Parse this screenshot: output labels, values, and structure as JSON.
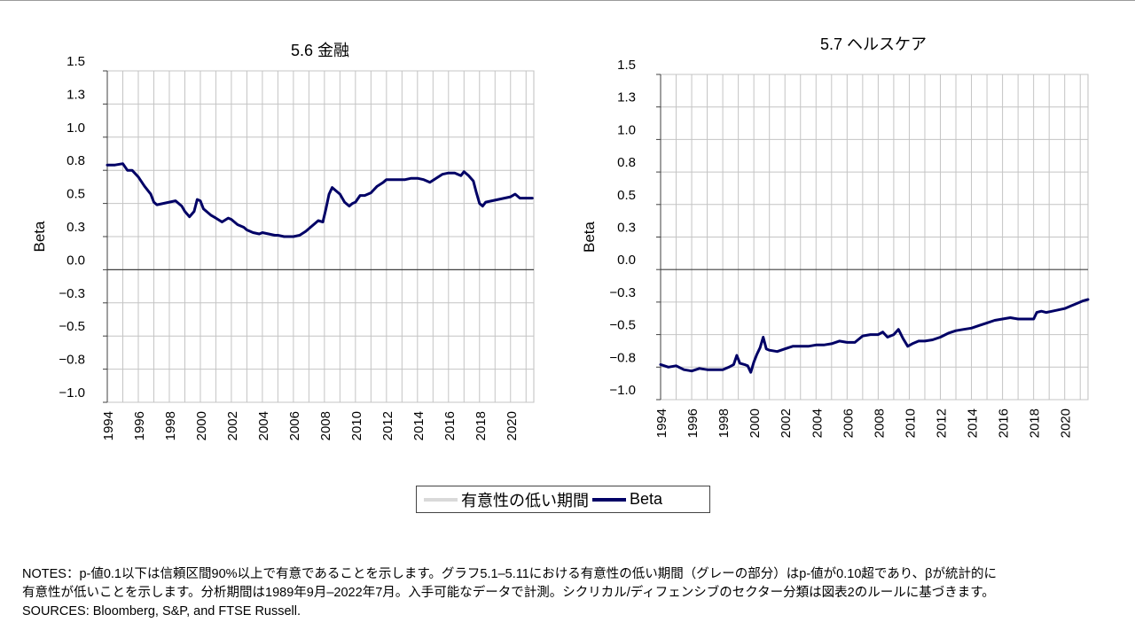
{
  "chart_data": [
    {
      "type": "line",
      "title": "5.6 金融",
      "ylabel": "Beta",
      "ylim": [
        -1.0,
        1.5
      ],
      "xlim": [
        1994,
        2021.5
      ],
      "yticks": [
        {
          "v": 1.5,
          "label": "1.5"
        },
        {
          "v": 1.25,
          "label": "1.3"
        },
        {
          "v": 1.0,
          "label": "1.0"
        },
        {
          "v": 0.75,
          "label": "0.8"
        },
        {
          "v": 0.5,
          "label": "0.5"
        },
        {
          "v": 0.25,
          "label": "0.3"
        },
        {
          "v": 0.0,
          "label": "0.0"
        },
        {
          "v": -0.25,
          "label": "−0.3"
        },
        {
          "v": -0.5,
          "label": "−0.5"
        },
        {
          "v": -0.75,
          "label": "−0.8"
        },
        {
          "v": -1.0,
          "label": "−1.0"
        }
      ],
      "xticks": [
        "1994",
        "1996",
        "1998",
        "2000",
        "2002",
        "2004",
        "2006",
        "2008",
        "2010",
        "2012",
        "2014",
        "2016",
        "2018",
        "2020"
      ],
      "grid": true,
      "series": [
        {
          "name": "Beta",
          "color": "#000066",
          "x": [
            1994.0,
            1994.5,
            1995.0,
            1995.3,
            1995.6,
            1996.0,
            1996.4,
            1996.8,
            1997.0,
            1997.2,
            1997.6,
            1998.0,
            1998.4,
            1998.8,
            1999.0,
            1999.3,
            1999.6,
            1999.8,
            2000.0,
            2000.2,
            2000.4,
            2000.7,
            2001.0,
            2001.4,
            2001.8,
            2002.0,
            2002.4,
            2002.8,
            2003.0,
            2003.4,
            2003.8,
            2004.0,
            2004.4,
            2004.8,
            2005.0,
            2005.4,
            2005.8,
            2006.0,
            2006.4,
            2006.8,
            2007.2,
            2007.6,
            2007.9,
            2008.1,
            2008.3,
            2008.5,
            2008.7,
            2009.0,
            2009.3,
            2009.6,
            2009.8,
            2010.0,
            2010.3,
            2010.6,
            2011.0,
            2011.4,
            2011.8,
            2012.0,
            2012.4,
            2012.8,
            2013.2,
            2013.6,
            2014.0,
            2014.4,
            2014.8,
            2015.2,
            2015.6,
            2016.0,
            2016.4,
            2016.8,
            2017.0,
            2017.3,
            2017.6,
            2017.8,
            2018.0,
            2018.2,
            2018.4,
            2018.8,
            2019.2,
            2019.6,
            2020.0,
            2020.3,
            2020.6,
            2020.9,
            2021.2,
            2021.4
          ],
          "y": [
            0.79,
            0.79,
            0.8,
            0.75,
            0.75,
            0.7,
            0.63,
            0.57,
            0.51,
            0.49,
            0.5,
            0.51,
            0.52,
            0.48,
            0.44,
            0.4,
            0.44,
            0.53,
            0.52,
            0.46,
            0.44,
            0.41,
            0.39,
            0.36,
            0.39,
            0.38,
            0.34,
            0.32,
            0.3,
            0.28,
            0.27,
            0.28,
            0.27,
            0.26,
            0.26,
            0.25,
            0.25,
            0.25,
            0.26,
            0.29,
            0.33,
            0.37,
            0.36,
            0.46,
            0.57,
            0.62,
            0.6,
            0.57,
            0.51,
            0.48,
            0.5,
            0.51,
            0.56,
            0.56,
            0.58,
            0.63,
            0.66,
            0.68,
            0.68,
            0.68,
            0.68,
            0.69,
            0.69,
            0.68,
            0.66,
            0.69,
            0.72,
            0.73,
            0.73,
            0.71,
            0.74,
            0.71,
            0.67,
            0.58,
            0.5,
            0.48,
            0.51,
            0.52,
            0.53,
            0.54,
            0.55,
            0.57,
            0.54,
            0.54,
            0.54,
            0.54
          ]
        }
      ]
    },
    {
      "type": "line",
      "title": "5.7 ヘルスケア",
      "ylabel": "Beta",
      "ylim": [
        -1.0,
        1.5
      ],
      "xlim": [
        1994,
        2021.5
      ],
      "yticks": [
        {
          "v": 1.5,
          "label": "1.5"
        },
        {
          "v": 1.25,
          "label": "1.3"
        },
        {
          "v": 1.0,
          "label": "1.0"
        },
        {
          "v": 0.75,
          "label": "0.8"
        },
        {
          "v": 0.5,
          "label": "0.5"
        },
        {
          "v": 0.25,
          "label": "0.3"
        },
        {
          "v": 0.0,
          "label": "0.0"
        },
        {
          "v": -0.25,
          "label": "−0.3"
        },
        {
          "v": -0.5,
          "label": "−0.5"
        },
        {
          "v": -0.75,
          "label": "−0.8"
        },
        {
          "v": -1.0,
          "label": "−1.0"
        }
      ],
      "xticks": [
        "1994",
        "1996",
        "1998",
        "2000",
        "2002",
        "2004",
        "2006",
        "2008",
        "2010",
        "2012",
        "2014",
        "2016",
        "2018",
        "2020"
      ],
      "grid": true,
      "series": [
        {
          "name": "Beta",
          "color": "#000066",
          "x": [
            1994.0,
            1994.5,
            1995.0,
            1995.5,
            1996.0,
            1996.5,
            1997.0,
            1997.5,
            1998.0,
            1998.4,
            1998.7,
            1998.9,
            1999.1,
            1999.4,
            1999.6,
            1999.8,
            2000.0,
            2000.2,
            2000.4,
            2000.6,
            2000.8,
            2001.0,
            2001.5,
            2002.0,
            2002.5,
            2003.0,
            2003.5,
            2004.0,
            2004.5,
            2005.0,
            2005.5,
            2006.0,
            2006.5,
            2007.0,
            2007.5,
            2008.0,
            2008.3,
            2008.6,
            2009.0,
            2009.3,
            2009.6,
            2009.9,
            2010.2,
            2010.6,
            2011.0,
            2011.5,
            2012.0,
            2012.5,
            2013.0,
            2013.5,
            2014.0,
            2014.5,
            2015.0,
            2015.5,
            2016.0,
            2016.5,
            2017.0,
            2017.5,
            2018.0,
            2018.2,
            2018.5,
            2018.8,
            2019.2,
            2019.6,
            2020.0,
            2020.4,
            2020.8,
            2021.2,
            2021.5
          ],
          "y": [
            -0.73,
            -0.75,
            -0.74,
            -0.77,
            -0.78,
            -0.76,
            -0.77,
            -0.77,
            -0.77,
            -0.75,
            -0.73,
            -0.66,
            -0.72,
            -0.73,
            -0.74,
            -0.79,
            -0.71,
            -0.65,
            -0.6,
            -0.52,
            -0.61,
            -0.62,
            -0.63,
            -0.61,
            -0.59,
            -0.59,
            -0.59,
            -0.58,
            -0.58,
            -0.57,
            -0.55,
            -0.56,
            -0.56,
            -0.51,
            -0.5,
            -0.5,
            -0.48,
            -0.52,
            -0.5,
            -0.46,
            -0.53,
            -0.59,
            -0.57,
            -0.55,
            -0.55,
            -0.54,
            -0.52,
            -0.49,
            -0.47,
            -0.46,
            -0.45,
            -0.43,
            -0.41,
            -0.39,
            -0.38,
            -0.37,
            -0.38,
            -0.38,
            -0.38,
            -0.33,
            -0.32,
            -0.33,
            -0.32,
            -0.31,
            -0.3,
            -0.28,
            -0.26,
            -0.24,
            -0.23
          ]
        }
      ]
    }
  ],
  "legend": {
    "low_significance_label": "有意性の低い期間",
    "beta_label": "Beta",
    "gray_color": "#d9d9d9",
    "navy_color": "#000066"
  },
  "notes": {
    "line1": "NOTES：p-値0.1以下は信頼区間90%以上で有意であることを示します。グラフ5.1–5.11における有意性の低い期間（グレーの部分）はp-値が0.10超であり、βが統計的に",
    "line2": "有意性が低いことを示します。分析期間は1989年9月–2022年7月。入手可能なデータで計測。シクリカル/ディフェンシブのセクター分類は図表2のルールに基づきます。",
    "sources": "SOURCES: Bloomberg, S&P, and FTSE Russell."
  }
}
